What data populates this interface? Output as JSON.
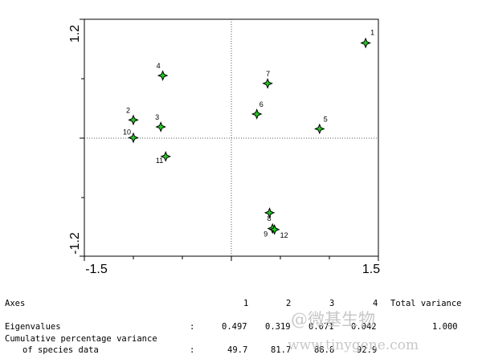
{
  "chart_data": {
    "type": "scatter",
    "xlim": [
      -1.5,
      1.5
    ],
    "ylim": [
      -1.2,
      1.2
    ],
    "x_tick_labels": [
      "-1.5",
      "1.5"
    ],
    "y_tick_labels": [
      "-1.2",
      "1.2"
    ],
    "reference_lines": "dotted lines at x=0 and y=0",
    "marker_color": "#22cc22",
    "points": [
      {
        "label": "1",
        "x": 1.37,
        "y": 0.96
      },
      {
        "label": "2",
        "x": -1.0,
        "y": 0.18
      },
      {
        "label": "3",
        "x": -0.72,
        "y": 0.11
      },
      {
        "label": "4",
        "x": -0.7,
        "y": 0.63
      },
      {
        "label": "5",
        "x": 0.9,
        "y": 0.09
      },
      {
        "label": "6",
        "x": 0.26,
        "y": 0.24
      },
      {
        "label": "7",
        "x": 0.37,
        "y": 0.55
      },
      {
        "label": "8",
        "x": 0.39,
        "y": -0.76
      },
      {
        "label": "9",
        "x": 0.42,
        "y": -0.92
      },
      {
        "label": "10",
        "x": -1.0,
        "y": 0.0
      },
      {
        "label": "11",
        "x": -0.67,
        "y": -0.19
      },
      {
        "label": "12",
        "x": 0.44,
        "y": -0.93
      }
    ]
  },
  "stats": {
    "axes_label": "Axes",
    "axis_numbers": [
      "1",
      "2",
      "3",
      "4"
    ],
    "total_variance_label": "Total variance",
    "eigenvalues_label": "Eigenvalues",
    "eigenvalues": [
      "0.497",
      "0.319",
      "0.071",
      "0.042"
    ],
    "total_variance": "1.000",
    "cumulative_label_line1": "Cumulative percentage variance",
    "cumulative_label_line2": "of species data",
    "cumulative": [
      "49.7",
      "81.7",
      "88.8",
      "92.9"
    ],
    "colon": ":"
  },
  "watermark": {
    "line1": "@微基生物",
    "line2": "www.tinygene.com"
  }
}
